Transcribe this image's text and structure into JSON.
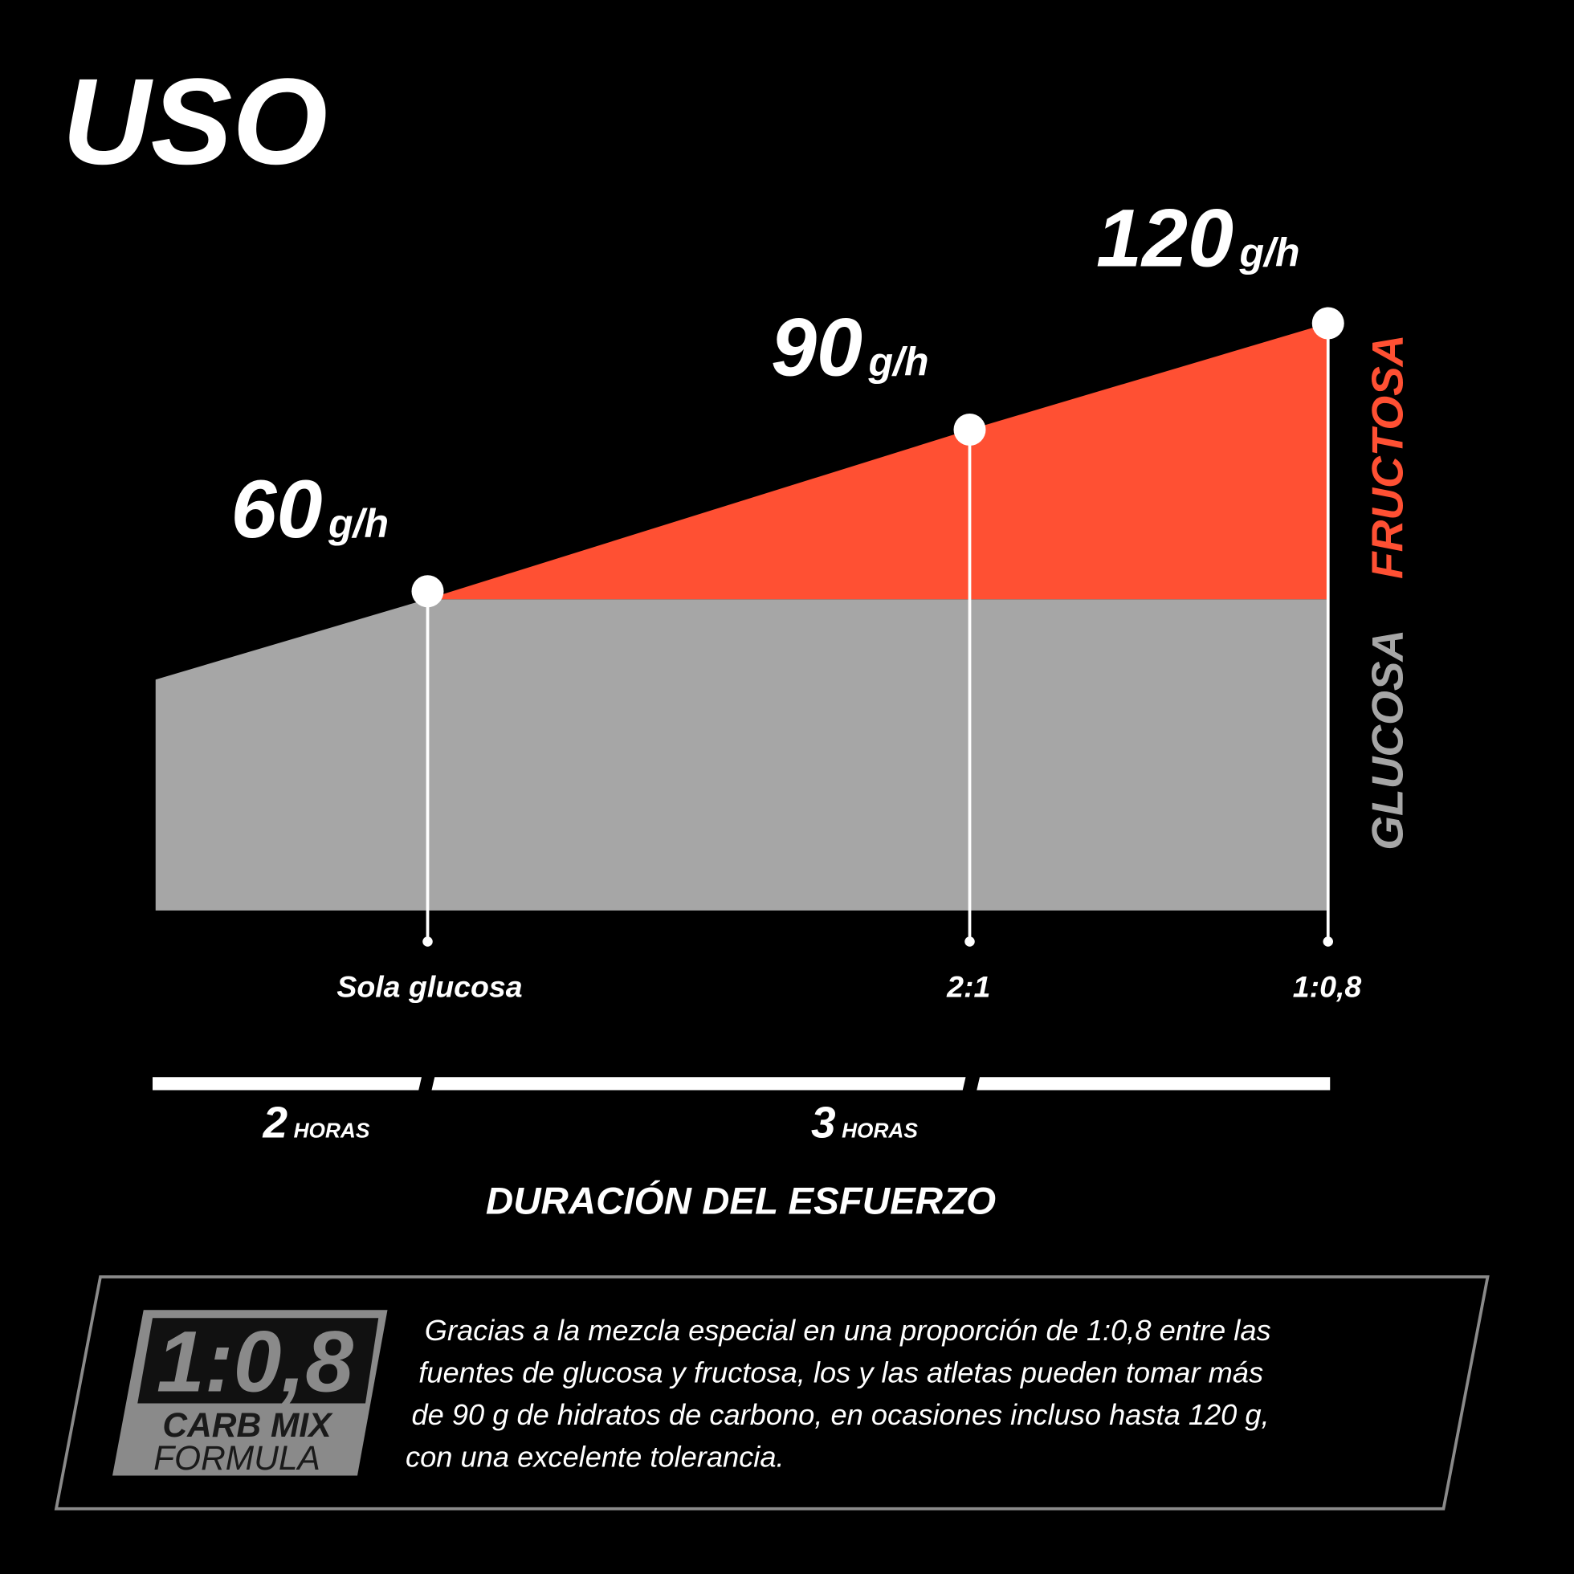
{
  "title": "USO",
  "points": [
    {
      "value": "60",
      "unit": "g/h",
      "ratio": "Sola glucosa"
    },
    {
      "value": "90",
      "unit": "g/h",
      "ratio": "2:1"
    },
    {
      "value": "120",
      "unit": "g/h",
      "ratio": "1:0,8"
    }
  ],
  "side_labels": {
    "fructose": "FRUCTOSA",
    "glucose": "GLUCOSA"
  },
  "durations": [
    {
      "number": "2",
      "unit": "HORAS"
    },
    {
      "number": "3",
      "unit": "HORAS"
    }
  ],
  "axis_title": "DURACIÓN DEL ESFUERZO",
  "badge": {
    "ratio": "1:0,8",
    "line1": "CARB MIX",
    "line2": "FORMULA"
  },
  "description": [
    "Gracias a la mezcla especial en una proporción de 1:0,8 entre las",
    "fuentes de glucosa y fructosa, los y las atletas pueden tomar más",
    "de 90 g de hidratos de carbono, en ocasiones incluso hasta 120 g,",
    "con una excelente tolerancia."
  ]
}
